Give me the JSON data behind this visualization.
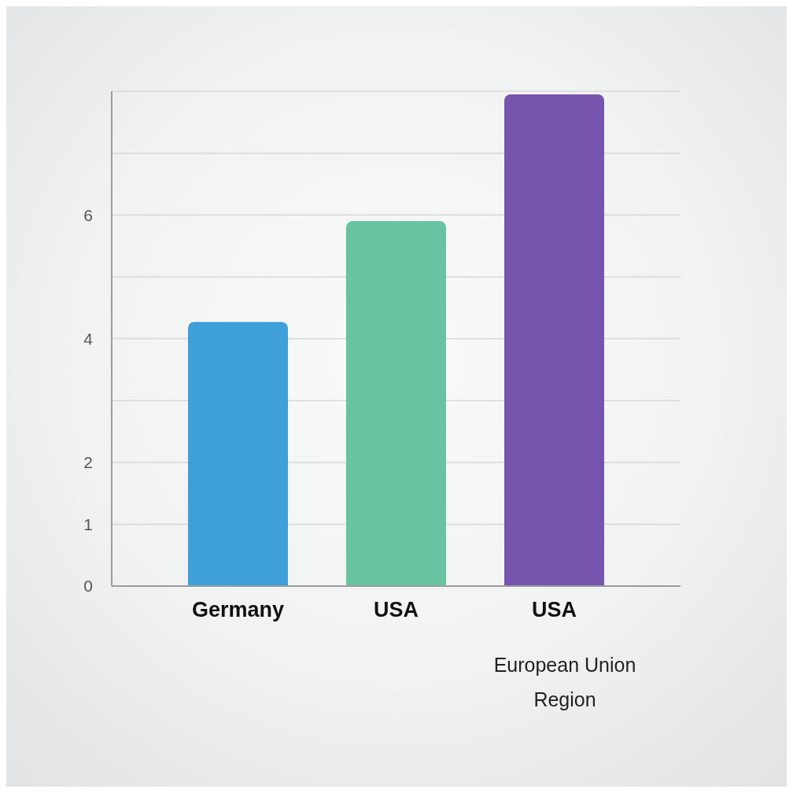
{
  "chart_data": {
    "type": "bar",
    "categories": [
      "Germany",
      "USA",
      "USA"
    ],
    "values": [
      4.27,
      5.9,
      7.95
    ],
    "colors": [
      "#3f9fd8",
      "#68c3a0",
      "#7754ae"
    ],
    "ylim": [
      0,
      8
    ],
    "yticks": [
      0,
      1,
      2,
      {
        "value": 3,
        "label": null
      },
      4,
      {
        "value": 5,
        "label": null
      },
      6,
      {
        "value": 7,
        "label": null
      },
      {
        "value": 8,
        "label": null
      }
    ],
    "grid": "y",
    "annotations": [
      "European Union Region"
    ]
  }
}
